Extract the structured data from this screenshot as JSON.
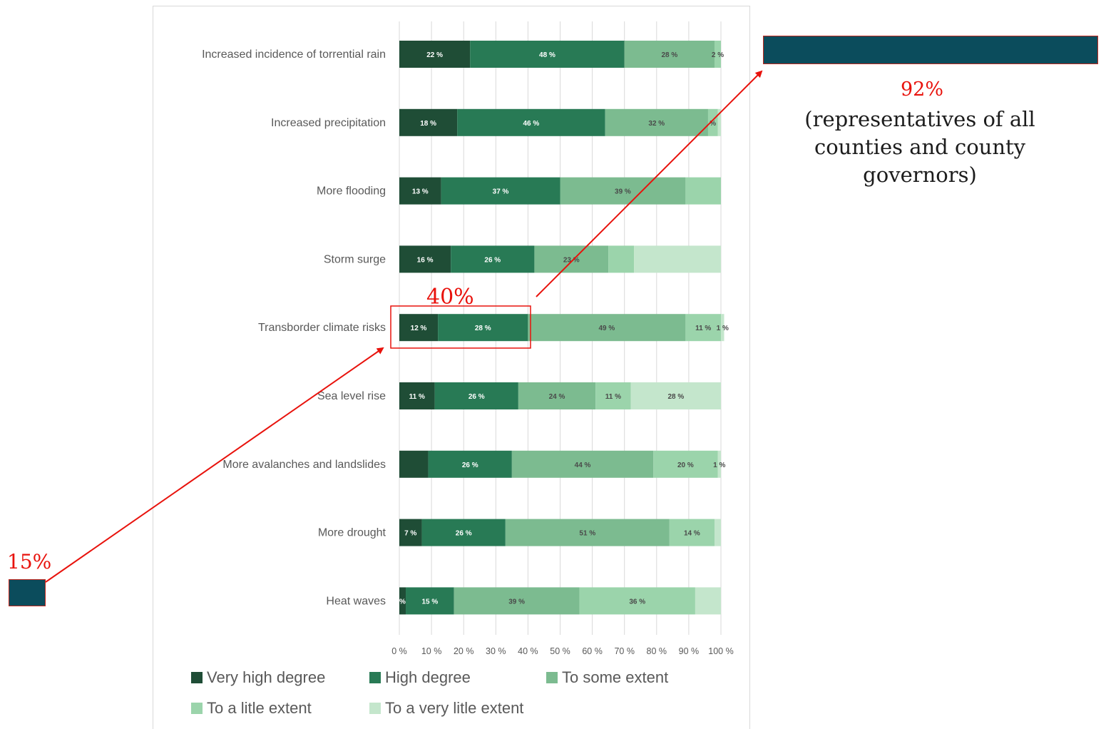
{
  "colors": {
    "very_high": "#1f4d36",
    "high": "#287a55",
    "some": "#7cbb90",
    "little": "#9bd4ab",
    "very_little": "#c4e6cc",
    "annotation": "#e8120c",
    "box_fill": "#0b4c5c"
  },
  "chart_data": {
    "type": "bar",
    "orientation": "horizontal",
    "stacked": true,
    "categories": [
      "Increased incidence of torrential rain",
      "Increased precipitation",
      "More flooding",
      "Storm surge",
      "Transborder climate risks",
      "Sea level rise",
      "More avalanches and landslides",
      "More drought",
      "Heat waves"
    ],
    "series": [
      {
        "name": "Very high degree",
        "values": [
          22,
          18,
          13,
          16,
          12,
          11,
          9,
          7,
          2
        ],
        "labels": [
          "22 %",
          "18 %",
          "13 %",
          "16 %",
          "12 %",
          "11 %",
          "",
          "7 %",
          "%"
        ]
      },
      {
        "name": "High degree",
        "values": [
          48,
          46,
          37,
          26,
          28,
          26,
          26,
          26,
          15
        ],
        "labels": [
          "48 %",
          "46 %",
          "37 %",
          "26 %",
          "28 %",
          "26 %",
          "26 %",
          "26 %",
          "15 %"
        ]
      },
      {
        "name": "To some extent",
        "values": [
          28,
          32,
          39,
          23,
          49,
          24,
          44,
          51,
          39
        ],
        "labels": [
          "28 %",
          "32 %",
          "39 %",
          "23 %",
          "49 %",
          "24 %",
          "44 %",
          "51 %",
          "39 %"
        ]
      },
      {
        "name": "To a litle extent",
        "values": [
          2,
          3,
          11,
          8,
          11,
          11,
          20,
          14,
          36
        ],
        "labels": [
          "2 %",
          "%",
          "",
          "",
          "11 %",
          "11 %",
          "20 %",
          "14 %",
          "36 %"
        ]
      },
      {
        "name": "To a very litle extent",
        "values": [
          0,
          1,
          0,
          27,
          1,
          28,
          1,
          2,
          8
        ],
        "labels": [
          "",
          "",
          "",
          "",
          "1 %",
          "28 %",
          "1 %",
          "",
          ""
        ]
      }
    ],
    "x_ticks": [
      "0 %",
      "10 %",
      "20 %",
      "30 %",
      "40 %",
      "50 %",
      "60 %",
      "70 %",
      "80 %",
      "90 %",
      "100 %"
    ],
    "xlim": [
      0,
      100
    ],
    "grid": "vertical",
    "legend_position": "bottom"
  },
  "annotations": {
    "highlight_label": "40%",
    "left_value": "15%",
    "right_value": "92%",
    "right_note_lines": [
      "(representatives of all",
      "counties and county",
      "governors)"
    ]
  }
}
